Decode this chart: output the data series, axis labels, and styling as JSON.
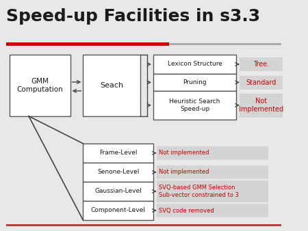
{
  "title": "Speed-up Facilities in s3.3",
  "title_fontsize": 18,
  "title_color": "#1a1a1a",
  "bg_color": "#e8e8e8",
  "red_line_color": "#cc0000",
  "box_facecolor": "#ffffff",
  "box_edgecolor": "#555555",
  "text_black": "#1a1a1a",
  "text_red": "#cc0000",
  "arrow_color": "#444444",
  "highlight_bg": "#d4d4d4",
  "gmm_text": "GMM\nComputation",
  "seach_text": "Seach",
  "right_rows": [
    "Lexicon Structure",
    "Pruning",
    "Heuristic Search\nSpeed-up"
  ],
  "right_labels": [
    "Tree.",
    "Standard",
    "Not\nImplemented"
  ],
  "level_rows": [
    "Frame-Level",
    "Senone-Level",
    "Gaussian-Level",
    "Component-Level"
  ],
  "level_labels": [
    "Not implemented",
    "Not implemented",
    "SVQ-based GMM Selection\nSub-vector constrained to 3",
    "SVQ code removed"
  ]
}
